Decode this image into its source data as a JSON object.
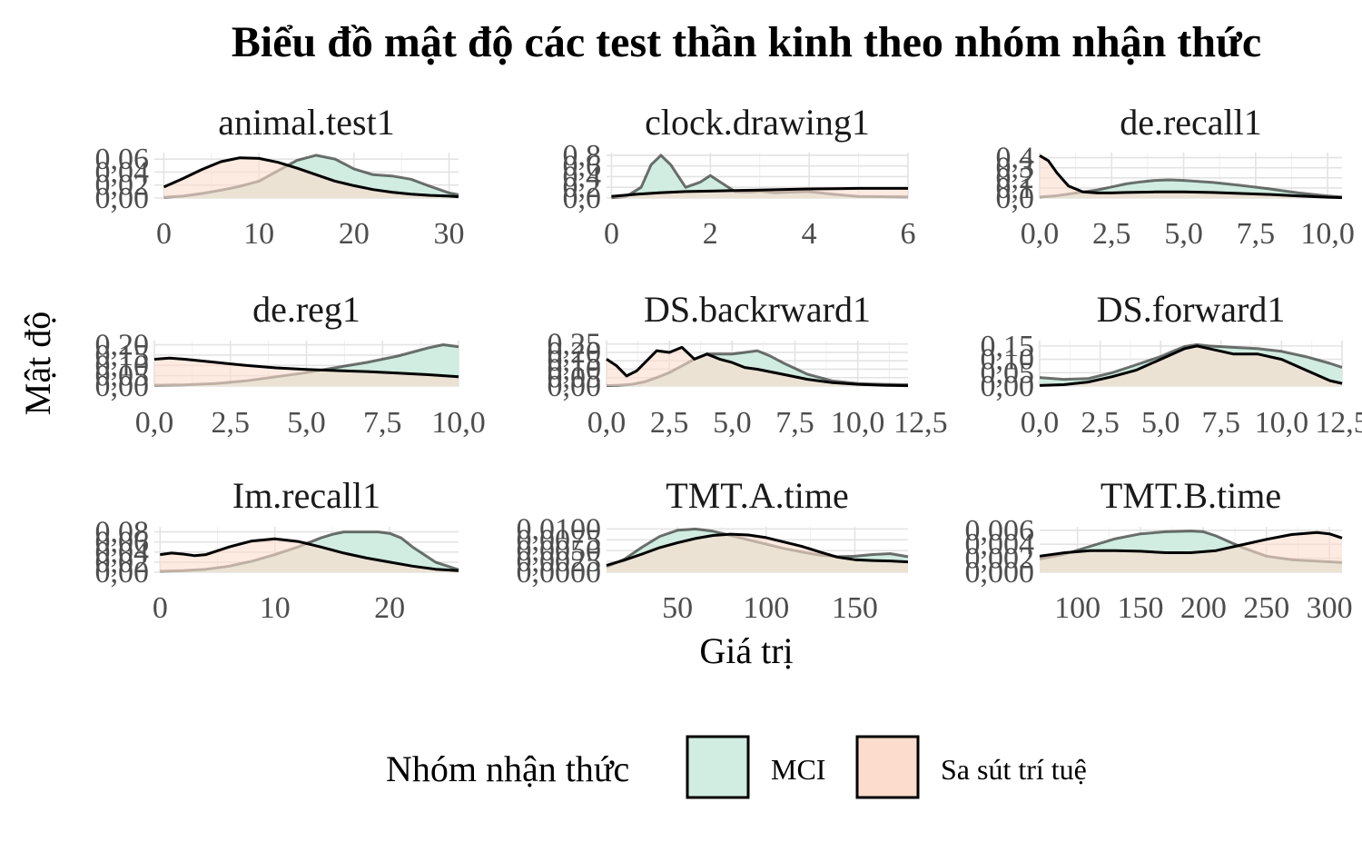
{
  "chart_data": {
    "type": "area",
    "title": "Biểu đồ mật độ các test thần kinh theo nhóm nhận thức",
    "xlabel": "Giá trị",
    "ylabel": "Mật độ",
    "grid": true,
    "legend": {
      "title": "Nhóm nhận thức",
      "position": "bottom",
      "entries": [
        {
          "name": "MCI",
          "color": "#d1ece0"
        },
        {
          "name": "Sa sút trí tuệ",
          "color": "#fcdccc"
        }
      ]
    },
    "colors": {
      "MCI": "#d1ece0",
      "Sa sút trí tuệ": "#fcdccc",
      "line": "#000000",
      "grid": "#e3e3e3"
    },
    "panels": [
      {
        "name": "animal.test1",
        "xlim": [
          -1,
          31
        ],
        "ylim": [
          0,
          0.07
        ],
        "xticks": [
          0,
          10,
          20,
          30
        ],
        "xtick_labels": [
          "0",
          "10",
          "20",
          "30"
        ],
        "yticks": [
          0,
          0.02,
          0.04,
          0.06
        ],
        "ytick_labels": [
          "0,00",
          "0,02",
          "0,04",
          "0,06"
        ],
        "series": [
          {
            "name": "MCI",
            "x": [
              0,
              2,
              4,
              6,
              8,
              10,
              12,
              14,
              16,
              18,
              20,
              22,
              24,
              26,
              28,
              30,
              31
            ],
            "y": [
              0.001,
              0.003,
              0.007,
              0.012,
              0.018,
              0.026,
              0.042,
              0.058,
              0.066,
              0.06,
              0.045,
              0.036,
              0.034,
              0.029,
              0.018,
              0.008,
              0.005
            ]
          },
          {
            "name": "Sa sút trí tuệ",
            "x": [
              0,
              2,
              4,
              6,
              8,
              10,
              12,
              14,
              16,
              18,
              20,
              22,
              24,
              26,
              28,
              30,
              31
            ],
            "y": [
              0.017,
              0.03,
              0.044,
              0.056,
              0.062,
              0.061,
              0.055,
              0.046,
              0.036,
              0.026,
              0.019,
              0.013,
              0.009,
              0.006,
              0.004,
              0.003,
              0.002
            ]
          }
        ]
      },
      {
        "name": "clock.drawing1",
        "xlim": [
          -0.1,
          6
        ],
        "ylim": [
          0,
          0.85
        ],
        "xticks": [
          0,
          2,
          4,
          6
        ],
        "xtick_labels": [
          "0",
          "2",
          "4",
          "6"
        ],
        "yticks": [
          0,
          0.2,
          0.4,
          0.6,
          0.8
        ],
        "ytick_labels": [
          "0,0",
          "0,2",
          "0,4",
          "0,6",
          "0,8"
        ],
        "series": [
          {
            "name": "MCI",
            "x": [
              0,
              0.3,
              0.6,
              0.8,
              1.0,
              1.2,
              1.5,
              1.8,
              2.0,
              2.2,
              2.5,
              2.8,
              3.0,
              3.3,
              3.6,
              4.0,
              4.5,
              5.0,
              6.0
            ],
            "y": [
              0.005,
              0.03,
              0.2,
              0.62,
              0.8,
              0.62,
              0.2,
              0.3,
              0.42,
              0.3,
              0.12,
              0.11,
              0.13,
              0.1,
              0.11,
              0.12,
              0.07,
              0.03,
              0.02
            ]
          },
          {
            "name": "Sa sút trí tuệ",
            "x": [
              0,
              0.5,
              1.0,
              1.5,
              2.0,
              2.5,
              3.0,
              3.5,
              4.0,
              4.5,
              5.0,
              5.5,
              6.0
            ],
            "y": [
              0.03,
              0.07,
              0.1,
              0.12,
              0.13,
              0.14,
              0.15,
              0.16,
              0.17,
              0.175,
              0.18,
              0.18,
              0.18
            ]
          }
        ]
      },
      {
        "name": "de.recall1",
        "xlim": [
          0,
          10.5
        ],
        "ylim": [
          0,
          0.45
        ],
        "xticks": [
          0,
          2.5,
          5,
          7.5,
          10
        ],
        "xtick_labels": [
          "0,0",
          "2,5",
          "5,0",
          "7,5",
          "10,0"
        ],
        "yticks": [
          0,
          0.1,
          0.2,
          0.3,
          0.4
        ],
        "ytick_labels": [
          "0,0",
          "0,1",
          "0,2",
          "0,3",
          "0,4"
        ],
        "series": [
          {
            "name": "MCI",
            "x": [
              0,
              0.5,
              1.0,
              1.5,
              2.0,
              2.5,
              3.0,
              3.5,
              4.0,
              4.5,
              5.0,
              6.0,
              7.0,
              8.0,
              9.0,
              10.0,
              10.5
            ],
            "y": [
              0.01,
              0.02,
              0.04,
              0.06,
              0.08,
              0.11,
              0.14,
              0.16,
              0.175,
              0.18,
              0.175,
              0.155,
              0.125,
              0.09,
              0.05,
              0.02,
              0.01
            ]
          },
          {
            "name": "Sa sút trí tuệ",
            "x": [
              0,
              0.3,
              0.6,
              1.0,
              1.5,
              2.0,
              2.5,
              3.0,
              4.0,
              5.0,
              6.0,
              7.0,
              8.0,
              9.0,
              10.0,
              10.5
            ],
            "y": [
              0.42,
              0.37,
              0.25,
              0.12,
              0.06,
              0.05,
              0.05,
              0.055,
              0.06,
              0.06,
              0.055,
              0.045,
              0.035,
              0.02,
              0.008,
              0.004
            ]
          }
        ]
      },
      {
        "name": "de.reg1",
        "xlim": [
          0,
          10
        ],
        "ylim": [
          0,
          0.22
        ],
        "xticks": [
          0,
          2.5,
          5,
          7.5,
          10
        ],
        "xtick_labels": [
          "0,0",
          "2,5",
          "5,0",
          "7,5",
          "10,0"
        ],
        "yticks": [
          0,
          0.05,
          0.1,
          0.15,
          0.2
        ],
        "ytick_labels": [
          "0,00",
          "0,05",
          "0,10",
          "0,15",
          "0,20"
        ],
        "series": [
          {
            "name": "MCI",
            "x": [
              0,
              1,
              2,
              3,
              4,
              5,
              6,
              7,
              8,
              9,
              9.5,
              10
            ],
            "y": [
              0.004,
              0.006,
              0.012,
              0.025,
              0.045,
              0.065,
              0.09,
              0.115,
              0.145,
              0.185,
              0.2,
              0.19
            ]
          },
          {
            "name": "Sa sút trí tuệ",
            "x": [
              0,
              0.5,
              1,
              2,
              3,
              4,
              5,
              6,
              7,
              8,
              9,
              10
            ],
            "y": [
              0.13,
              0.135,
              0.13,
              0.115,
              0.1,
              0.088,
              0.08,
              0.075,
              0.07,
              0.063,
              0.055,
              0.045
            ]
          }
        ]
      },
      {
        "name": "DS.backrward1",
        "xlim": [
          0,
          12
        ],
        "ylim": [
          0,
          0.27
        ],
        "xticks": [
          0,
          2.5,
          5,
          7.5,
          10,
          12.5
        ],
        "xtick_labels": [
          "0,0",
          "2,5",
          "5,0",
          "7,5",
          "10,0",
          "12,5"
        ],
        "yticks": [
          0,
          0.05,
          0.1,
          0.15,
          0.2,
          0.25
        ],
        "ytick_labels": [
          "0,00",
          "0,05",
          "0,10",
          "0,15",
          "0,20",
          "0,25"
        ],
        "series": [
          {
            "name": "MCI",
            "x": [
              0,
              0.5,
              1,
              1.5,
              2,
              2.5,
              3,
              3.5,
              4,
              4.5,
              5,
              5.5,
              6,
              6.5,
              7,
              8,
              9,
              10,
              11,
              12
            ],
            "y": [
              0.002,
              0.005,
              0.01,
              0.025,
              0.05,
              0.08,
              0.12,
              0.16,
              0.19,
              0.19,
              0.19,
              0.2,
              0.21,
              0.18,
              0.14,
              0.07,
              0.03,
              0.015,
              0.01,
              0.008
            ]
          },
          {
            "name": "Sa sút trí tuệ",
            "x": [
              0,
              0.4,
              0.8,
              1.2,
              1.6,
              2,
              2.5,
              3,
              3.5,
              4,
              4.5,
              5,
              5.5,
              6,
              7,
              8,
              9,
              10,
              11,
              12
            ],
            "y": [
              0.16,
              0.12,
              0.06,
              0.09,
              0.15,
              0.21,
              0.2,
              0.23,
              0.16,
              0.19,
              0.16,
              0.14,
              0.11,
              0.1,
              0.07,
              0.04,
              0.02,
              0.01,
              0.005,
              0.002
            ]
          }
        ]
      },
      {
        "name": "DS.forward1",
        "xlim": [
          0,
          12.5
        ],
        "ylim": [
          0,
          0.17
        ],
        "xticks": [
          0,
          2.5,
          5,
          7.5,
          10,
          12.5
        ],
        "xtick_labels": [
          "0,0",
          "2,5",
          "5,0",
          "7,5",
          "10,0",
          "12,5"
        ],
        "yticks": [
          0,
          0.05,
          0.1,
          0.15
        ],
        "ytick_labels": [
          "0,00",
          "0,05",
          "0,10",
          "0,15"
        ],
        "series": [
          {
            "name": "MCI",
            "x": [
              0,
              1,
              2,
              3,
              4,
              5,
              5.5,
              6,
              6.5,
              7,
              8,
              9,
              10,
              11,
              12,
              12.5
            ],
            "y": [
              0.032,
              0.025,
              0.028,
              0.05,
              0.08,
              0.11,
              0.13,
              0.148,
              0.155,
              0.15,
              0.145,
              0.14,
              0.13,
              0.11,
              0.085,
              0.07
            ]
          },
          {
            "name": "Sa sút trí tuệ",
            "x": [
              0,
              1,
              2,
              3,
              4,
              5,
              6,
              6.5,
              7,
              8,
              9,
              10,
              11,
              12,
              12.5
            ],
            "y": [
              0.002,
              0.005,
              0.015,
              0.035,
              0.06,
              0.1,
              0.14,
              0.15,
              0.14,
              0.12,
              0.12,
              0.1,
              0.06,
              0.02,
              0.01
            ]
          }
        ]
      },
      {
        "name": "Im.recall1",
        "xlim": [
          -0.5,
          26
        ],
        "ylim": [
          0,
          0.09
        ],
        "xticks": [
          0,
          10,
          20
        ],
        "xtick_labels": [
          "0",
          "10",
          "20"
        ],
        "yticks": [
          0,
          0.02,
          0.04,
          0.06,
          0.08
        ],
        "ytick_labels": [
          "0,00",
          "0,02",
          "0,04",
          "0,06",
          "0,08"
        ],
        "series": [
          {
            "name": "MCI",
            "x": [
              0,
              2,
              4,
              6,
              8,
              10,
              12,
              14,
              15,
              16,
              18,
              19,
              20,
              21,
              22,
              24,
              26
            ],
            "y": [
              0.002,
              0.003,
              0.006,
              0.012,
              0.022,
              0.035,
              0.05,
              0.068,
              0.075,
              0.08,
              0.08,
              0.08,
              0.077,
              0.068,
              0.05,
              0.02,
              0.005
            ]
          },
          {
            "name": "Sa sút trí tuệ",
            "x": [
              0,
              1,
              2,
              3,
              4,
              6,
              8,
              10,
              12,
              14,
              16,
              18,
              20,
              22,
              24,
              26
            ],
            "y": [
              0.035,
              0.038,
              0.036,
              0.033,
              0.035,
              0.05,
              0.062,
              0.066,
              0.061,
              0.05,
              0.038,
              0.028,
              0.02,
              0.012,
              0.006,
              0.003
            ]
          }
        ]
      },
      {
        "name": "TMT.A.time",
        "xlim": [
          10,
          180
        ],
        "ylim": [
          0,
          0.0105
        ],
        "xticks": [
          50,
          100,
          150
        ],
        "xtick_labels": [
          "50",
          "100",
          "150"
        ],
        "yticks": [
          0,
          0.0025,
          0.005,
          0.0075,
          0.01
        ],
        "ytick_labels": [
          "0,0000",
          "0,0025",
          "0,0050",
          "0,0075",
          "0,0100"
        ],
        "series": [
          {
            "name": "MCI",
            "x": [
              10,
              20,
              30,
              40,
              50,
              60,
              70,
              80,
              90,
              100,
              110,
              120,
              130,
              140,
              150,
              160,
              170,
              180
            ],
            "y": [
              0.0012,
              0.003,
              0.0058,
              0.0083,
              0.0097,
              0.01,
              0.0095,
              0.0085,
              0.0075,
              0.0065,
              0.0055,
              0.0047,
              0.004,
              0.0036,
              0.0037,
              0.0041,
              0.0043,
              0.0036
            ]
          },
          {
            "name": "Sa sút trí tuệ",
            "x": [
              10,
              20,
              30,
              40,
              50,
              60,
              70,
              80,
              90,
              100,
              110,
              120,
              130,
              140,
              150,
              160,
              170,
              180
            ],
            "y": [
              0.0016,
              0.0028,
              0.0042,
              0.0057,
              0.0068,
              0.0078,
              0.0085,
              0.0088,
              0.0086,
              0.008,
              0.007,
              0.006,
              0.0047,
              0.0035,
              0.0029,
              0.0027,
              0.0026,
              0.0024
            ]
          }
        ]
      },
      {
        "name": "TMT.B.time",
        "xlim": [
          70,
          310
        ],
        "ylim": [
          0,
          0.0065
        ],
        "xticks": [
          100,
          150,
          200,
          250,
          300
        ],
        "xtick_labels": [
          "100",
          "150",
          "200",
          "250",
          "300"
        ],
        "yticks": [
          0,
          0.002,
          0.004,
          0.006
        ],
        "ytick_labels": [
          "0,000",
          "0,002",
          "0,004",
          "0,006"
        ],
        "series": [
          {
            "name": "MCI",
            "x": [
              70,
              90,
              110,
              130,
              150,
              170,
              190,
              200,
              210,
              230,
              250,
              270,
              290,
              310
            ],
            "y": [
              0.0019,
              0.0026,
              0.0037,
              0.0048,
              0.0055,
              0.0058,
              0.0059,
              0.0058,
              0.0052,
              0.0036,
              0.0023,
              0.0018,
              0.0016,
              0.0014
            ]
          },
          {
            "name": "Sa sút trí tuệ",
            "x": [
              70,
              90,
              110,
              130,
              150,
              170,
              190,
              210,
              230,
              250,
              270,
              290,
              300,
              310
            ],
            "y": [
              0.0023,
              0.0028,
              0.0031,
              0.0031,
              0.003,
              0.0028,
              0.0028,
              0.0031,
              0.0039,
              0.0047,
              0.0054,
              0.0057,
              0.0055,
              0.0049
            ]
          }
        ]
      }
    ]
  }
}
